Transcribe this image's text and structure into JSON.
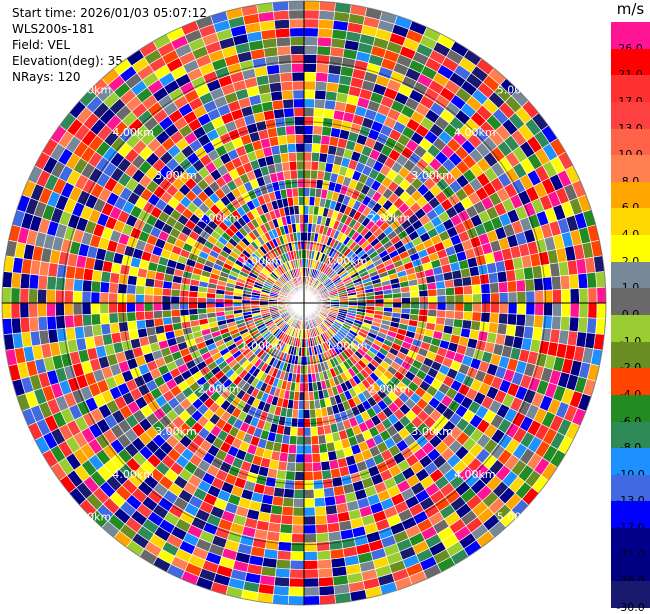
{
  "info": {
    "start_time": "Start time: 2026/01/03 05:07:12",
    "site": "WLS200s-181",
    "field": "Field: VEL",
    "elevation": "Elevation(deg): 35.00",
    "nrays": "NRays: 120"
  },
  "chart_data": {
    "type": "heatmap",
    "projection": "polar-ppi",
    "n_rays": 120,
    "range_rings_km": [
      1,
      2,
      3,
      4,
      5
    ],
    "ring_labels": [
      "1.00km",
      "2.00km",
      "3.00km",
      "4.00km",
      "5.00km"
    ],
    "colorbar": {
      "unit": "m/s",
      "tick_labels": [
        "26.0",
        "21.0",
        "17.0",
        "13.0",
        "10.0",
        "8.0",
        "6.0",
        "4.0",
        "2.0",
        "1.0",
        "0.0",
        "-1.0",
        "-2.0",
        "-4.0",
        "-6.0",
        "-8.0",
        "-10.0",
        "-13.0",
        "-17.0",
        "-21.0",
        "-26.0",
        "-30.0"
      ],
      "colors": [
        "#ff1493",
        "#ff0000",
        "#ff3030",
        "#ff4040",
        "#ff6347",
        "#ff7f50",
        "#ffa500",
        "#ffd700",
        "#ffff00",
        "#778899",
        "#696969",
        "#9acd32",
        "#6b8e23",
        "#ff4500",
        "#228b22",
        "#2e8b57",
        "#1e90ff",
        "#4169e1",
        "#0000ff",
        "#00008b",
        "#000080",
        "#191970"
      ]
    }
  }
}
